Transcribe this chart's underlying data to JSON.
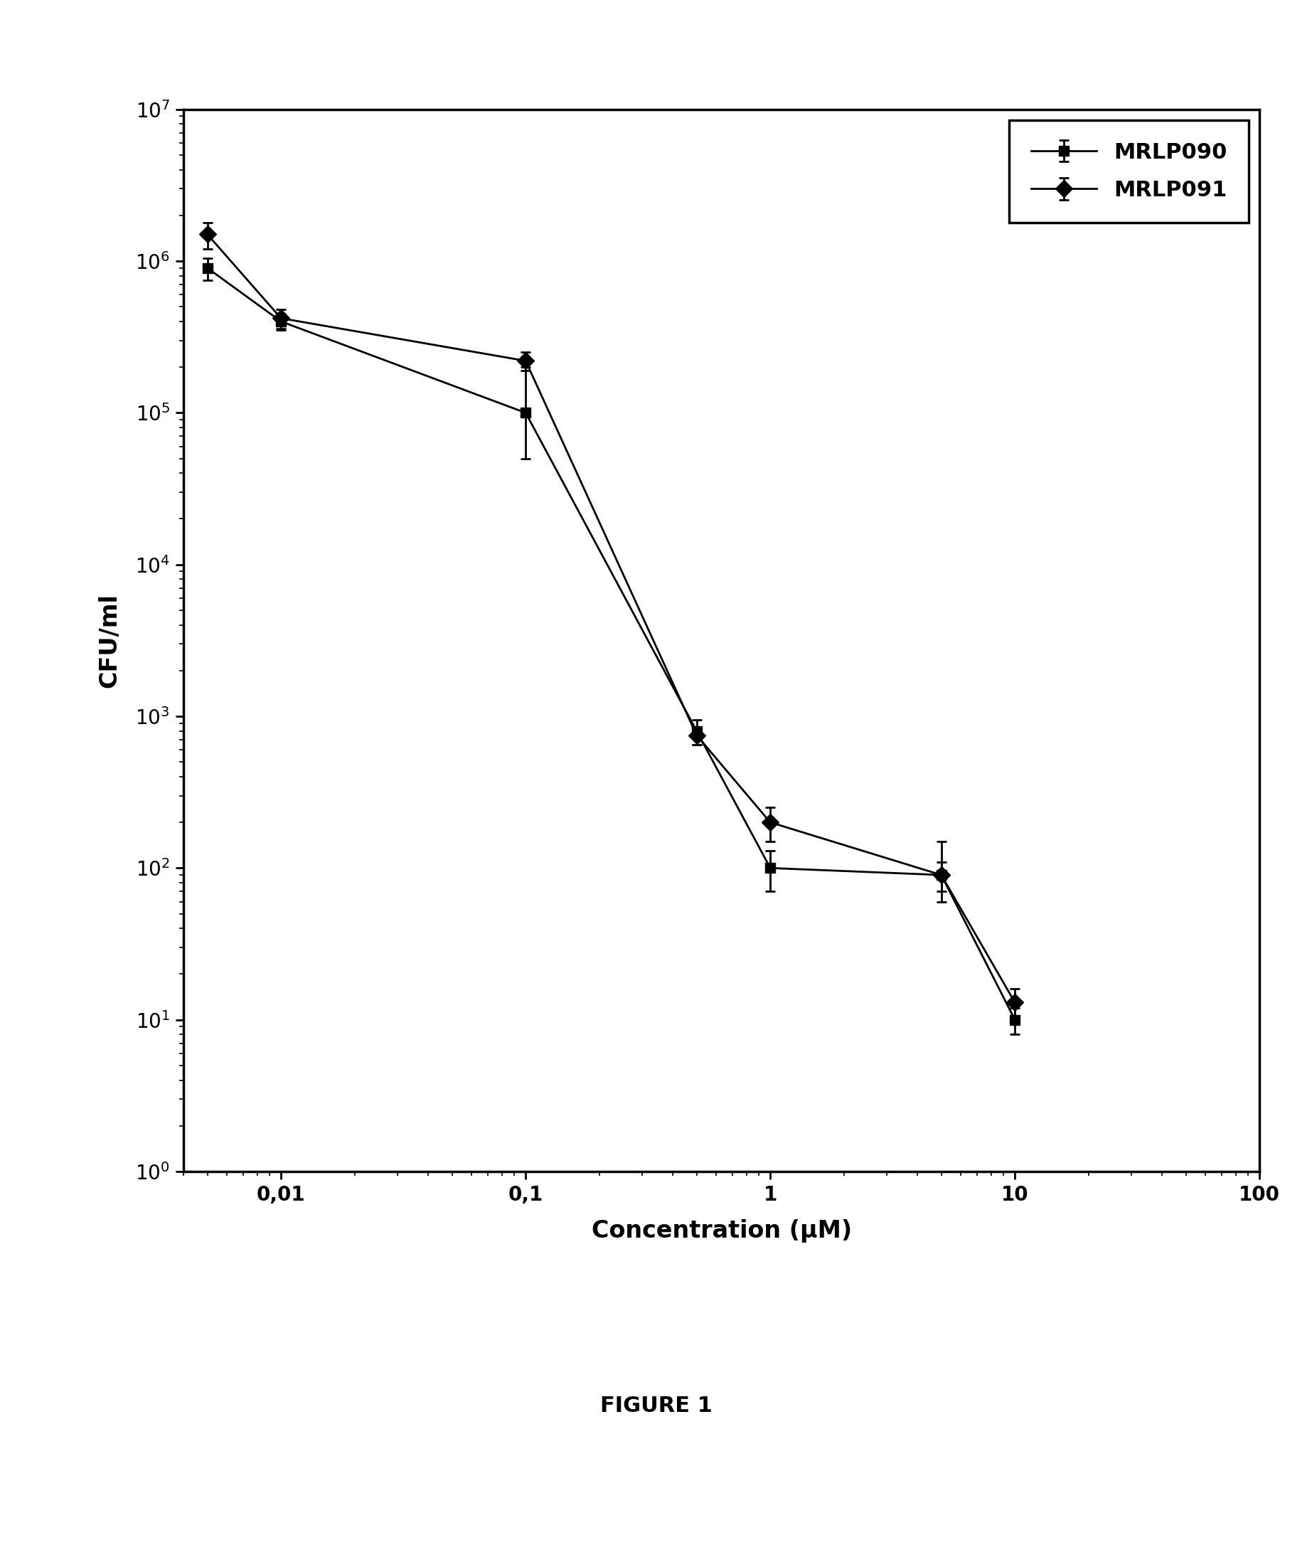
{
  "title": "FIGURE 1",
  "xlabel": "Concentration (μM)",
  "ylabel": "CFU/ml",
  "xlim": [
    0.004,
    100
  ],
  "ylim": [
    1,
    10000000.0
  ],
  "series": [
    {
      "label": "MRLP090",
      "marker": "s",
      "x": [
        0.005,
        0.01,
        0.1,
        0.5,
        1,
        5,
        10
      ],
      "y": [
        900000,
        400000,
        100000,
        800,
        100,
        90,
        10
      ],
      "yerr_low": [
        150000,
        50000,
        50000,
        150,
        30,
        20,
        2
      ],
      "yerr_high": [
        150000,
        50000,
        100000,
        150,
        30,
        20,
        2
      ],
      "color": "#000000",
      "linewidth": 2.0,
      "markersize": 10
    },
    {
      "label": "MRLP091",
      "marker": "D",
      "x": [
        0.005,
        0.01,
        0.1,
        0.5,
        1,
        5,
        10
      ],
      "y": [
        1500000,
        420000,
        220000,
        750,
        200,
        90,
        13
      ],
      "yerr_low": [
        300000,
        60000,
        30000,
        100,
        50,
        30,
        3
      ],
      "yerr_high": [
        300000,
        60000,
        30000,
        100,
        50,
        60,
        3
      ],
      "color": "#000000",
      "linewidth": 2.0,
      "markersize": 12
    }
  ],
  "legend_loc": "upper right",
  "background_color": "#ffffff",
  "xticks": [
    0.01,
    0.1,
    1,
    10,
    100
  ],
  "xticklabels": [
    "0,01",
    "0,1",
    "1",
    "10",
    "100"
  ],
  "yticks": [
    1,
    10,
    100,
    1000,
    10000,
    100000,
    1000000,
    10000000
  ]
}
